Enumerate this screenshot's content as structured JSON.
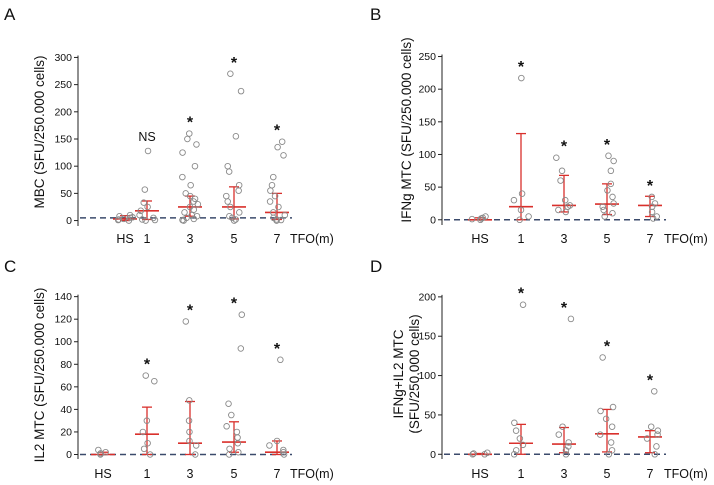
{
  "chart_data": [
    {
      "panel": "A",
      "type": "scatter",
      "ylabel": "MBC (SFU/250.000 cells)",
      "ylim": [
        -10,
        310
      ],
      "yticks": [
        0,
        50,
        100,
        150,
        200,
        250,
        300
      ],
      "categories": [
        "HS",
        "1",
        "3",
        "5",
        "7"
      ],
      "xlabel": "TFO(m)",
      "baseline": 5,
      "annotations": [
        "",
        "NS",
        "*",
        "*",
        "*"
      ],
      "summary": [
        {
          "median": 3,
          "q1": 0,
          "q3": 9
        },
        {
          "median": 18,
          "q1": 2,
          "q3": 36
        },
        {
          "median": 25,
          "q1": 8,
          "q3": 45
        },
        {
          "median": 25,
          "q1": 3,
          "q3": 62
        },
        {
          "median": 15,
          "q1": 2,
          "q3": 50
        }
      ],
      "points": [
        [
          0,
          1,
          3,
          5,
          8,
          10,
          2,
          6
        ],
        [
          128,
          57,
          33,
          25,
          18,
          10,
          5,
          2,
          0,
          1
        ],
        [
          160,
          150,
          140,
          125,
          100,
          80,
          65,
          50,
          45,
          40,
          35,
          30,
          25,
          20,
          15,
          10,
          8,
          5,
          3,
          1,
          0
        ],
        [
          270,
          238,
          155,
          100,
          90,
          65,
          55,
          45,
          35,
          25,
          15,
          8,
          5,
          2,
          0
        ],
        [
          145,
          135,
          120,
          80,
          65,
          55,
          45,
          35,
          25,
          15,
          10,
          5,
          2,
          0,
          1
        ]
      ]
    },
    {
      "panel": "B",
      "type": "scatter",
      "ylabel": "IFNg MTC (SFU/250.000 cells)",
      "ylim": [
        -8,
        260
      ],
      "yticks": [
        0,
        50,
        100,
        150,
        200,
        250
      ],
      "categories": [
        "HS",
        "1",
        "3",
        "5",
        "7"
      ],
      "xlabel": "TFO(m)",
      "baseline": 0,
      "annotations": [
        "",
        "*",
        "*",
        "*",
        "*"
      ],
      "summary": [
        {
          "median": 0,
          "q1": 0,
          "q3": 3
        },
        {
          "median": 20,
          "q1": 0,
          "q3": 132
        },
        {
          "median": 22,
          "q1": 12,
          "q3": 68
        },
        {
          "median": 24,
          "q1": 8,
          "q3": 55
        },
        {
          "median": 22,
          "q1": 5,
          "q3": 36
        }
      ],
      "points": [
        [
          0,
          2,
          5,
          1,
          3
        ],
        [
          217,
          40,
          30,
          15,
          5,
          0
        ],
        [
          95,
          75,
          60,
          30,
          22,
          20,
          15,
          12
        ],
        [
          98,
          90,
          75,
          55,
          45,
          35,
          25,
          20,
          15,
          10,
          5
        ],
        [
          35,
          25,
          20,
          12,
          5,
          2
        ]
      ]
    },
    {
      "panel": "C",
      "type": "scatter",
      "ylabel": "IL2 MTC (SFU/250.000 cells)",
      "ylim": [
        -4,
        145
      ],
      "yticks": [
        0,
        20,
        40,
        60,
        80,
        100,
        120,
        140
      ],
      "categories": [
        "HS",
        "1",
        "3",
        "5",
        "7"
      ],
      "xlabel": "TFO(m)",
      "baseline": 0,
      "annotations": [
        "",
        "*",
        "*",
        "*",
        "*"
      ],
      "summary": [
        {
          "median": 0,
          "q1": 0,
          "q3": 2
        },
        {
          "median": 18,
          "q1": 0,
          "q3": 42
        },
        {
          "median": 10,
          "q1": 0,
          "q3": 47
        },
        {
          "median": 11,
          "q1": 2,
          "q3": 29
        },
        {
          "median": 2,
          "q1": 0,
          "q3": 12
        }
      ],
      "points": [
        [
          0,
          2,
          4,
          1
        ],
        [
          70,
          65,
          30,
          20,
          10,
          5,
          0
        ],
        [
          118,
          48,
          30,
          20,
          12,
          8,
          0
        ],
        [
          124,
          94,
          45,
          35,
          25,
          20,
          15,
          10,
          5,
          0,
          2
        ],
        [
          84,
          12,
          8,
          4,
          2,
          0
        ]
      ]
    },
    {
      "panel": "D",
      "type": "scatter",
      "ylabel": "IFNg+IL2 MTC (SFU/250.000 cells)",
      "ylim": [
        -6,
        210
      ],
      "yticks": [
        0,
        50,
        100,
        150,
        200
      ],
      "categories": [
        "HS",
        "1",
        "3",
        "5",
        "7"
      ],
      "xlabel": "TFO(m)",
      "baseline": 0,
      "annotations": [
        "",
        "*",
        "*",
        "*",
        "*"
      ],
      "summary": [
        {
          "median": 0,
          "q1": 0,
          "q3": 1
        },
        {
          "median": 14,
          "q1": 0,
          "q3": 38
        },
        {
          "median": 13,
          "q1": 2,
          "q3": 34
        },
        {
          "median": 26,
          "q1": 3,
          "q3": 57
        },
        {
          "median": 22,
          "q1": 2,
          "q3": 30
        }
      ],
      "points": [
        [
          0,
          1,
          0,
          2
        ],
        [
          190,
          40,
          30,
          20,
          12,
          5,
          0
        ],
        [
          172,
          35,
          25,
          15,
          10,
          5,
          0
        ],
        [
          123,
          60,
          55,
          45,
          35,
          25,
          15,
          5,
          0
        ],
        [
          80,
          35,
          30,
          25,
          20,
          10,
          0
        ]
      ]
    }
  ]
}
